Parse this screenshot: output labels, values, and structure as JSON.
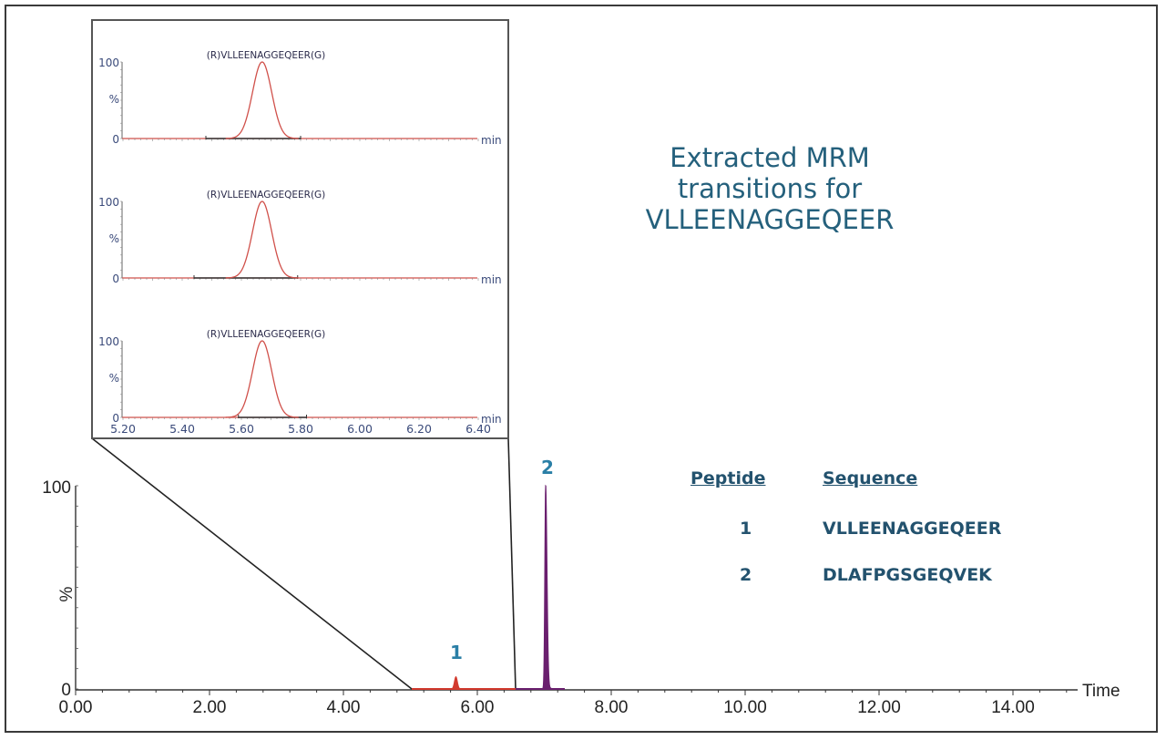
{
  "title": {
    "line1": "Extracted MRM",
    "line2": "transitions for",
    "line3": "VLLEENAGGEQEER"
  },
  "legend_table": {
    "headers": [
      "Peptide ",
      "Sequence"
    ],
    "rows": [
      {
        "peptide": "1",
        "sequence": "VLLEENAGGEQEER"
      },
      {
        "peptide": "2",
        "sequence": "DLAFPGSGEQVEK"
      }
    ]
  },
  "colors": {
    "title_text": "#24607c",
    "legend_text": "#23526e",
    "peak_label": "#2a7fa6",
    "trace_red": "#d23a2e",
    "trace_purple": "#6a1f6e",
    "inset_axis_text": "#3a4a7a",
    "inset_trace": "#d0504a"
  },
  "chart_data": [
    {
      "type": "line",
      "title": "",
      "xlabel": "Time",
      "ylabel": "%",
      "xlim": [
        0,
        15
      ],
      "ylim": [
        0,
        100
      ],
      "x_ticks": [
        "0.00",
        "2.00",
        "4.00",
        "6.00",
        "8.00",
        "10.00",
        "12.00",
        "14.00"
      ],
      "y_ticks": [
        "0",
        "100"
      ],
      "grid": false,
      "peaks": [
        {
          "label": "1",
          "retention_time_min": 5.68,
          "relative_intensity_pct": 6,
          "color": "#d23a2e",
          "peptide": "VLLEENAGGEQEER"
        },
        {
          "label": "2",
          "retention_time_min": 7.02,
          "relative_intensity_pct": 100,
          "color": "#6a1f6e",
          "peptide": "DLAFPGSGEQVEK"
        }
      ],
      "zoom_region_min": [
        5.0,
        6.58
      ]
    },
    {
      "type": "line",
      "title": "Inset: extracted MRM transitions (3 panels)",
      "xlabel": "min",
      "ylabel": "%",
      "xlim": [
        5.2,
        6.4
      ],
      "ylim": [
        0,
        100
      ],
      "x_ticks": [
        "5.20",
        "5.40",
        "5.60",
        "5.80",
        "6.00",
        "6.20",
        "6.40"
      ],
      "y_ticks": [
        "0",
        "100"
      ],
      "series": [
        {
          "name": "(R)VLLEENAGGEQEER(G)",
          "peak_rt_min": 5.67,
          "peak_pct": 100,
          "integration_window": [
            5.48,
            5.8
          ]
        },
        {
          "name": "(R)VLLEENAGGEQEER(G)",
          "peak_rt_min": 5.67,
          "peak_pct": 100,
          "integration_window": [
            5.44,
            5.79
          ]
        },
        {
          "name": "(R)VLLEENAGGEQEER(G)",
          "peak_rt_min": 5.67,
          "peak_pct": 100,
          "integration_window": [
            5.59,
            5.82
          ]
        }
      ]
    }
  ],
  "inset": {
    "panels": [
      {
        "label": "(R)VLLEENAGGEQEER(G)",
        "y_top": "100",
        "y_mid": "%",
        "y_bottom": "0",
        "x_unit": "min"
      },
      {
        "label": "(R)VLLEENAGGEQEER(G)",
        "y_top": "100",
        "y_mid": "%",
        "y_bottom": "0",
        "x_unit": "min"
      },
      {
        "label": "(R)VLLEENAGGEQEER(G)",
        "y_top": "100",
        "y_mid": "%",
        "y_bottom": "0",
        "x_unit": "min"
      }
    ],
    "x_ticks": [
      "5.20",
      "5.40",
      "5.60",
      "5.80",
      "6.00",
      "6.20",
      "6.40"
    ]
  },
  "main_axis": {
    "y_top": "100",
    "y_bottom": "0",
    "y_label": "%",
    "x_label": "Time",
    "x_ticks": [
      "0.00",
      "2.00",
      "4.00",
      "6.00",
      "8.00",
      "10.00",
      "12.00",
      "14.00"
    ],
    "peak_labels": [
      "1",
      "2"
    ]
  }
}
